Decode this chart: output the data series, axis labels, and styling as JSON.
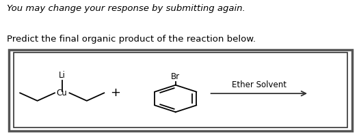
{
  "title_text": "You may change your response by submitting again.",
  "subtitle_text": "Predict the final organic product of the reaction below.",
  "title_fontsize": 9.5,
  "subtitle_fontsize": 9.5,
  "ether_label": "Ether Solvent",
  "plus_sign": "+",
  "br_label": "Br",
  "li_label": "Li",
  "cu_label": "Cu",
  "background": "#ffffff",
  "outer_box_color": "#555555",
  "inner_box_color": "#333333",
  "text_color": "#000000",
  "arrow_color": "#333333",
  "fig_width": 5.25,
  "fig_height": 1.98,
  "dpi": 100
}
